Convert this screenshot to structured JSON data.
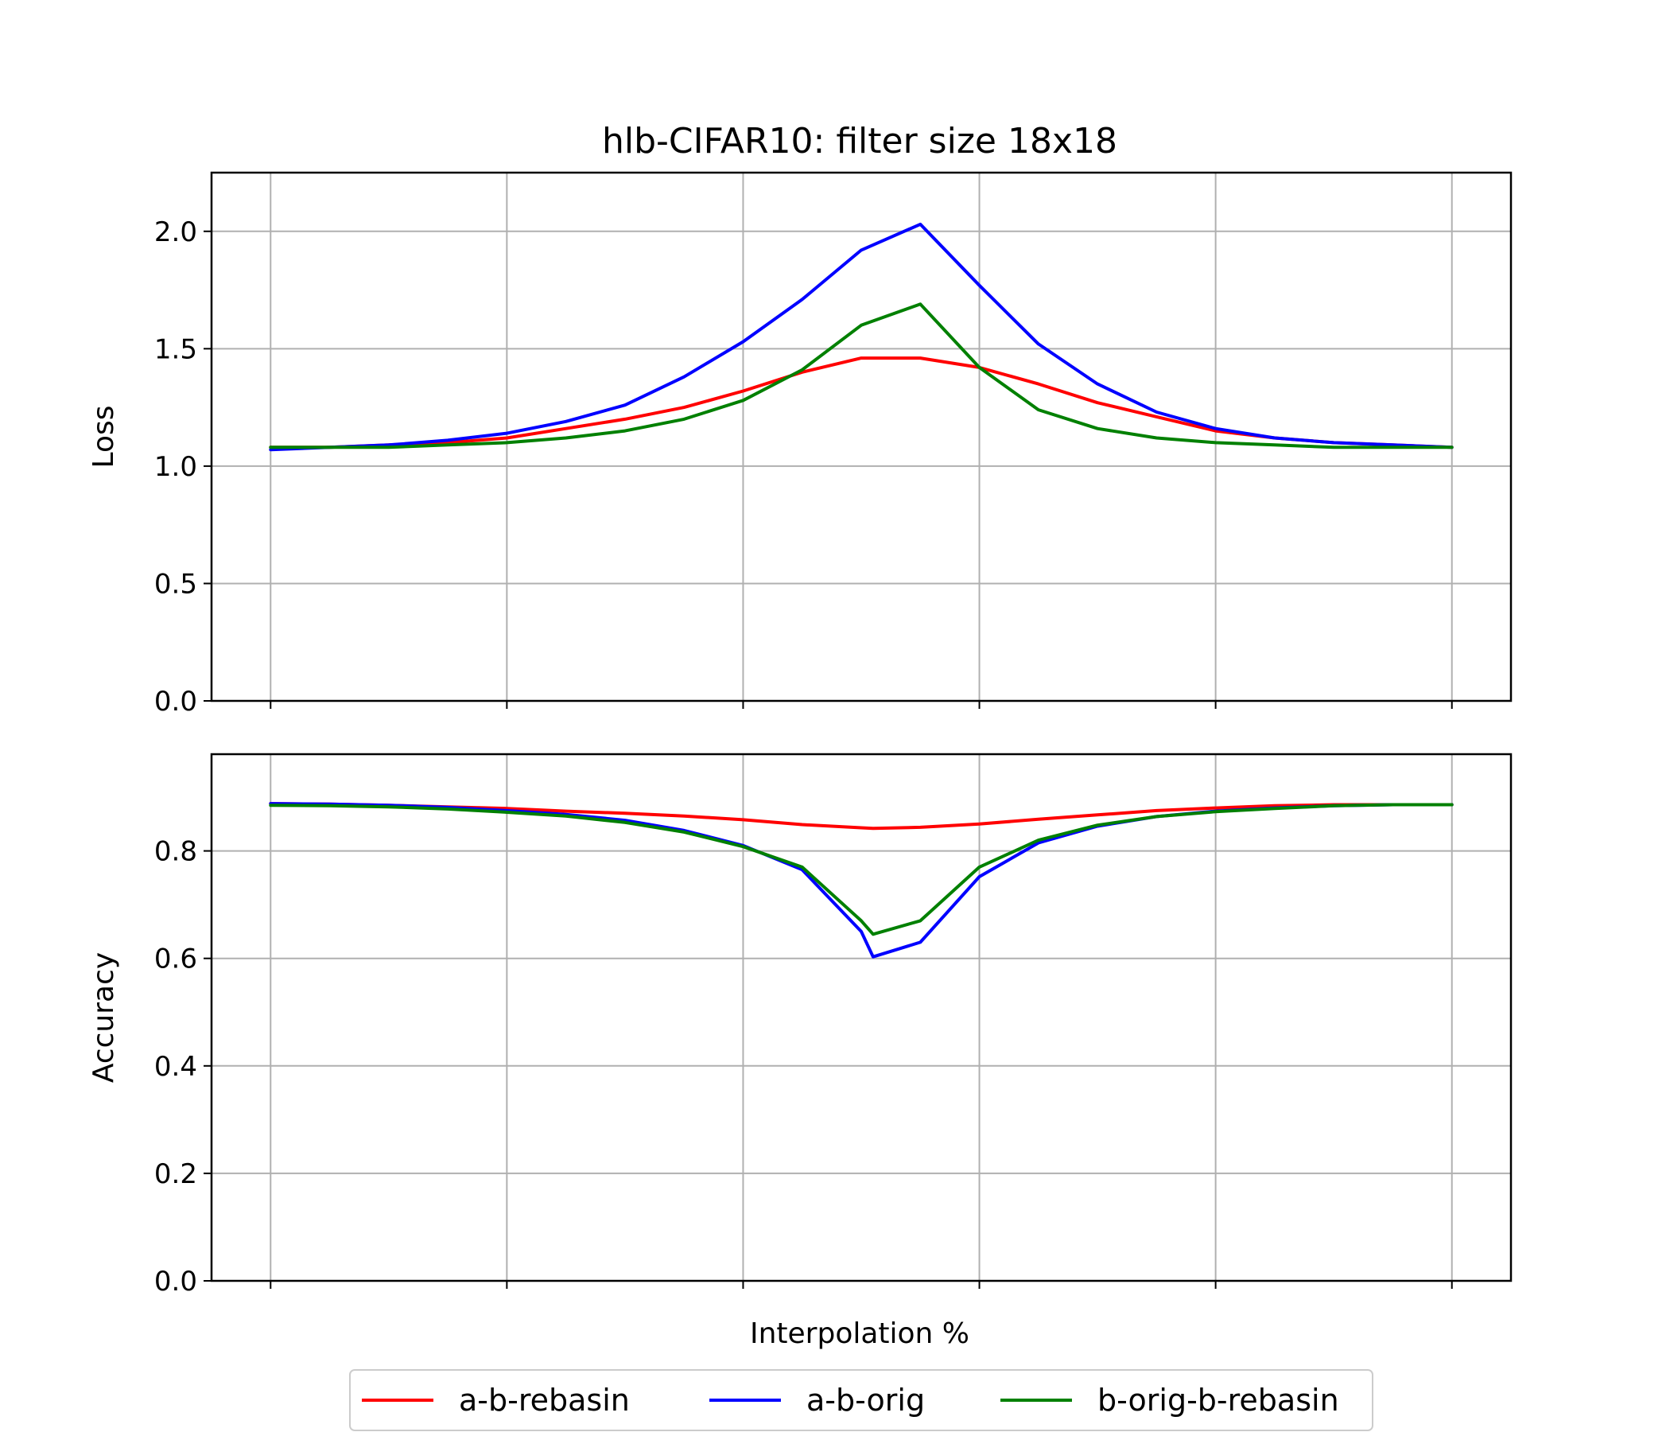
{
  "chart_data": {
    "title": "hlb-CIFAR10: filter size 18x18",
    "xlabel": "Interpolation %",
    "x_tick_count": 6,
    "xlim": [
      -0.05,
      1.05
    ],
    "grid": true,
    "legend_position": "bottom-center",
    "series": [
      {
        "name": "a-b-rebasin",
        "color": "#ff0000"
      },
      {
        "name": "a-b-orig",
        "color": "#0000ff"
      },
      {
        "name": "b-orig-b-rebasin",
        "color": "#008000"
      }
    ],
    "panels": [
      {
        "type": "line",
        "ylabel": "Loss",
        "ylim": [
          0,
          2.25
        ],
        "yticks": [
          "0.0",
          "0.5",
          "1.0",
          "1.5",
          "2.0"
        ],
        "x": [
          0.0,
          0.05,
          0.1,
          0.15,
          0.2,
          0.25,
          0.3,
          0.35,
          0.4,
          0.45,
          0.5,
          0.55,
          0.6,
          0.65,
          0.7,
          0.75,
          0.8,
          0.85,
          0.9,
          0.95,
          1.0
        ],
        "series": [
          {
            "name": "a-b-rebasin",
            "values": [
              1.08,
              1.08,
              1.09,
              1.1,
              1.12,
              1.16,
              1.2,
              1.25,
              1.32,
              1.4,
              1.46,
              1.46,
              1.42,
              1.35,
              1.27,
              1.21,
              1.15,
              1.12,
              1.1,
              1.09,
              1.08
            ]
          },
          {
            "name": "a-b-orig",
            "values": [
              1.07,
              1.08,
              1.09,
              1.11,
              1.14,
              1.19,
              1.26,
              1.38,
              1.53,
              1.71,
              1.92,
              2.03,
              1.77,
              1.52,
              1.35,
              1.23,
              1.16,
              1.12,
              1.1,
              1.09,
              1.08
            ]
          },
          {
            "name": "b-orig-b-rebasin",
            "values": [
              1.08,
              1.08,
              1.08,
              1.09,
              1.1,
              1.12,
              1.15,
              1.2,
              1.28,
              1.41,
              1.6,
              1.69,
              1.42,
              1.24,
              1.16,
              1.12,
              1.1,
              1.09,
              1.08,
              1.08,
              1.08
            ]
          }
        ]
      },
      {
        "type": "line",
        "ylabel": "Accuracy",
        "ylim": [
          0,
          0.98
        ],
        "yticks": [
          "0.0",
          "0.2",
          "0.4",
          "0.6",
          "0.8"
        ],
        "x": [
          0.0,
          0.05,
          0.1,
          0.15,
          0.2,
          0.25,
          0.3,
          0.35,
          0.4,
          0.45,
          0.5,
          0.51,
          0.55,
          0.6,
          0.65,
          0.7,
          0.75,
          0.8,
          0.85,
          0.9,
          0.95,
          1.0
        ],
        "series": [
          {
            "name": "a-b-rebasin",
            "values": [
              0.888,
              0.887,
              0.885,
              0.882,
              0.879,
              0.874,
              0.87,
              0.865,
              0.858,
              0.849,
              0.843,
              0.842,
              0.844,
              0.85,
              0.859,
              0.867,
              0.875,
              0.88,
              0.884,
              0.886,
              0.886,
              0.886
            ]
          },
          {
            "name": "a-b-orig",
            "values": [
              0.888,
              0.887,
              0.885,
              0.881,
              0.875,
              0.868,
              0.857,
              0.838,
              0.81,
              0.765,
              0.65,
              0.603,
              0.63,
              0.752,
              0.815,
              0.846,
              0.864,
              0.874,
              0.88,
              0.884,
              0.886,
              0.886
            ]
          },
          {
            "name": "b-orig-b-rebasin",
            "values": [
              0.885,
              0.884,
              0.882,
              0.878,
              0.872,
              0.865,
              0.853,
              0.835,
              0.808,
              0.77,
              0.67,
              0.645,
              0.67,
              0.77,
              0.82,
              0.848,
              0.864,
              0.873,
              0.879,
              0.884,
              0.886,
              0.886
            ]
          }
        ]
      }
    ]
  }
}
